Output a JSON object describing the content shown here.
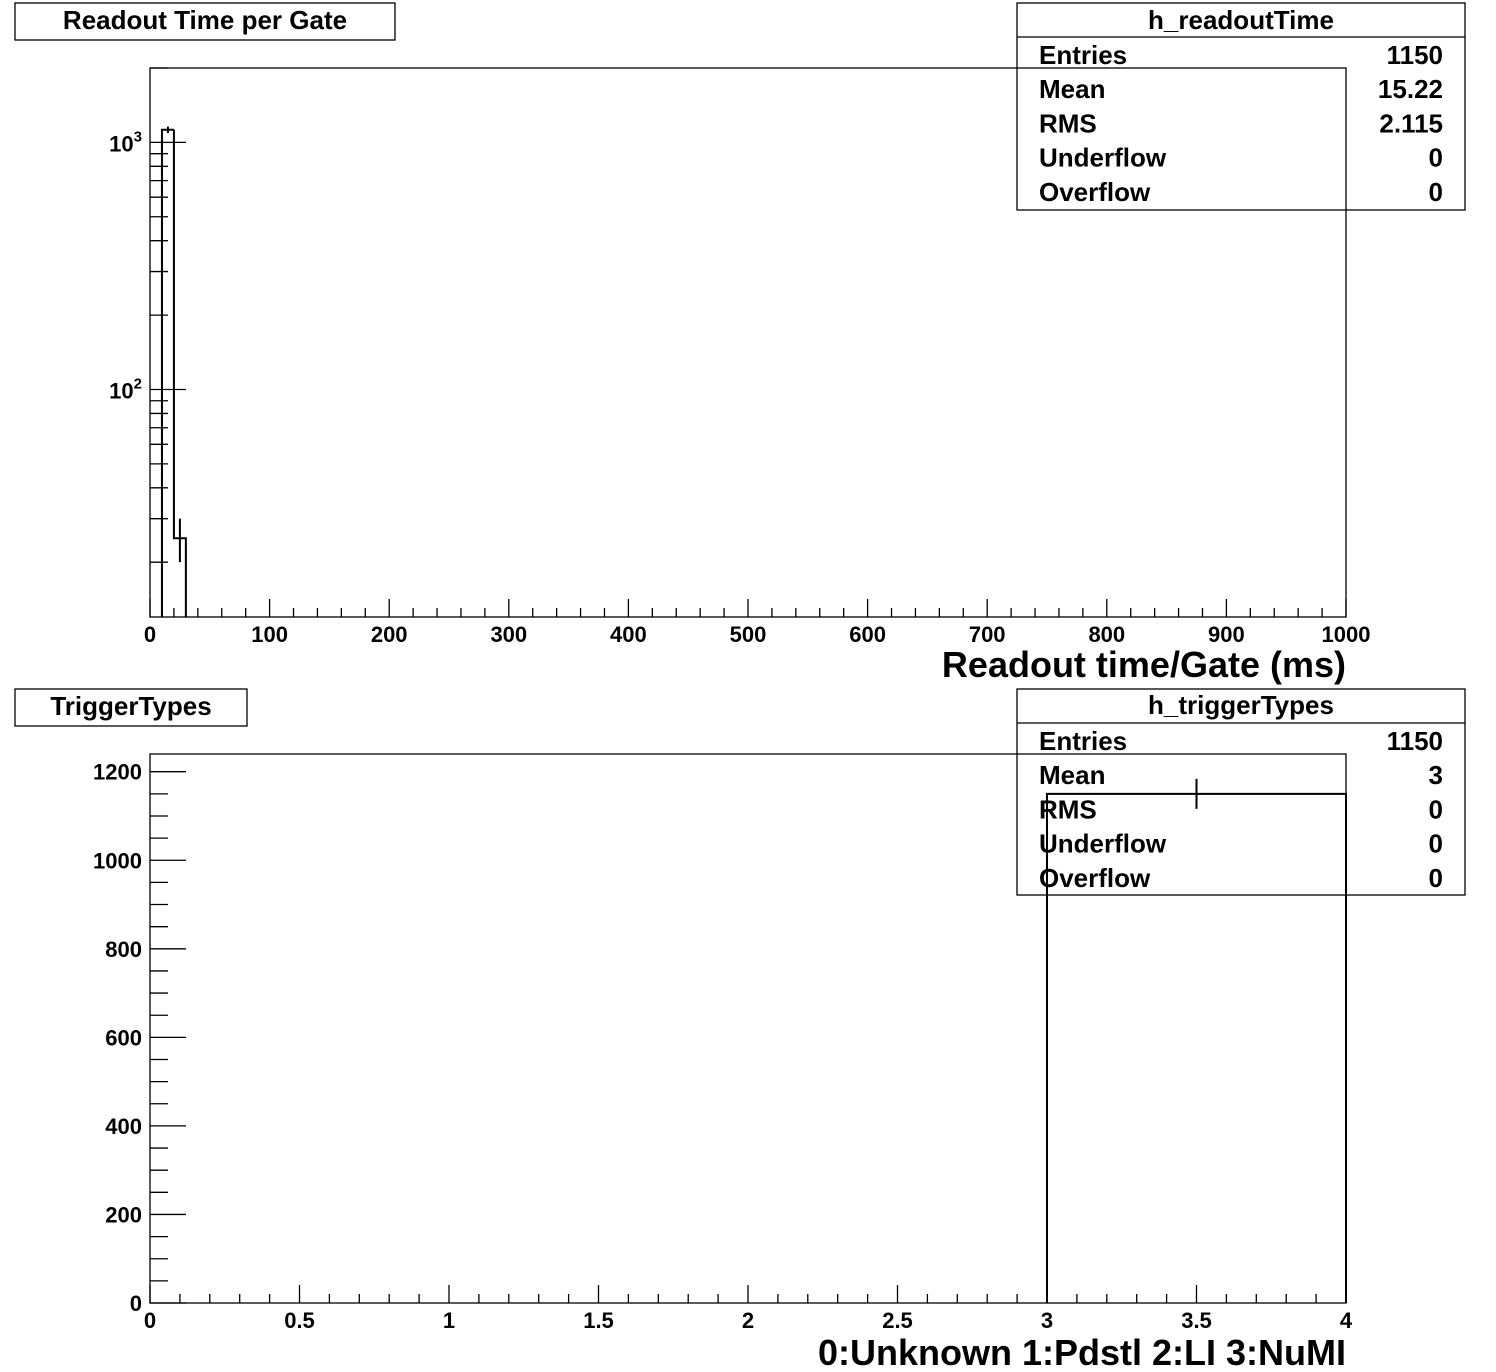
{
  "chart_data": [
    {
      "type": "bar",
      "title": "Readout Time per Gate",
      "xlabel": "Readout time/Gate (ms)",
      "ylabel": "",
      "xlim": [
        0,
        1000
      ],
      "ylim": [
        12,
        2000
      ],
      "log_y": true,
      "x_ticks": [
        "0",
        "100",
        "200",
        "300",
        "400",
        "500",
        "600",
        "700",
        "800",
        "900",
        "1000"
      ],
      "y_ticks": [
        {
          "base": "10",
          "exp": "3",
          "value": 1000
        },
        {
          "base": "10",
          "exp": "2",
          "value": 100
        }
      ],
      "bins": [
        {
          "x0": 10,
          "x1": 20,
          "value": 1125
        },
        {
          "x0": 20,
          "x1": 30,
          "value": 25
        }
      ],
      "grid": false,
      "stats": {
        "name": "h_readoutTime",
        "placement": "top-right",
        "rows": [
          {
            "label": "Entries",
            "value": "1150"
          },
          {
            "label": "Mean",
            "value": "15.22"
          },
          {
            "label": "RMS",
            "value": "2.115"
          },
          {
            "label": "Underflow",
            "value": "0"
          },
          {
            "label": "Overflow",
            "value": "0"
          }
        ]
      }
    },
    {
      "type": "bar",
      "title": "TriggerTypes",
      "xlabel": "0:Unknown 1:Pdstl 2:LI 3:NuMI",
      "ylabel": "",
      "xlim": [
        0,
        4
      ],
      "ylim": [
        0,
        1240
      ],
      "log_y": false,
      "x_ticks": [
        "0",
        "0.5",
        "1",
        "1.5",
        "2",
        "2.5",
        "3",
        "3.5",
        "4"
      ],
      "y_ticks": [
        "0",
        "200",
        "400",
        "600",
        "800",
        "1000",
        "1200"
      ],
      "bins": [
        {
          "x0": 3,
          "x1": 4,
          "value": 1150
        }
      ],
      "grid": false,
      "stats": {
        "name": "h_triggerTypes",
        "placement": "top-right",
        "rows": [
          {
            "label": "Entries",
            "value": "1150"
          },
          {
            "label": "Mean",
            "value": "3"
          },
          {
            "label": "RMS",
            "value": "0"
          },
          {
            "label": "Underflow",
            "value": "0"
          },
          {
            "label": "Overflow",
            "value": "0"
          }
        ]
      }
    }
  ]
}
